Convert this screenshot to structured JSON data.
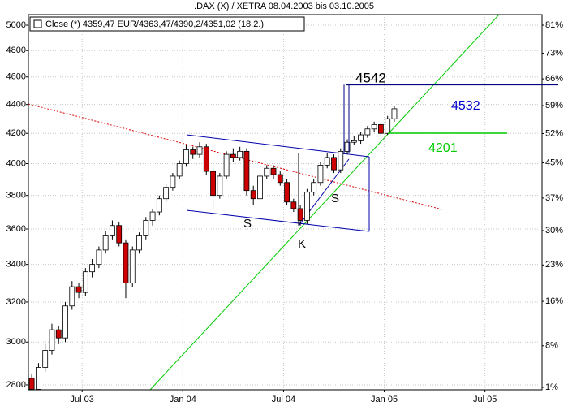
{
  "chart_data": {
    "type": "candlestick",
    "title": ".DAX (X) / XETRA 08.04.2003 bis 03.10.2005",
    "legend_text": "Close (*) 4359,47 EUR/4363,47/4390,2/4351,02 (18.2.)",
    "log_scale": true,
    "grid": true,
    "up_color": "#ffffff",
    "down_color": "#cc0000",
    "xlim": [
      2.8,
      33.4
    ],
    "xticks": [
      {
        "value": 6,
        "label": "Jul 03"
      },
      {
        "value": 12,
        "label": "Jan 04"
      },
      {
        "value": 18,
        "label": "Jul 04"
      },
      {
        "value": 24,
        "label": "Jan 05"
      },
      {
        "value": 30,
        "label": "Jul 05"
      }
    ],
    "ylim": [
      2778,
      5086
    ],
    "yticks": [
      2800,
      3000,
      3200,
      3400,
      3600,
      3800,
      4000,
      4200,
      4400,
      4600,
      4800,
      5000
    ],
    "y2lim": [
      0.6,
      84.1
    ],
    "y2ticks": [
      {
        "value": 1,
        "label": "1%"
      },
      {
        "value": 8,
        "label": "8%"
      },
      {
        "value": 16,
        "label": "16%"
      },
      {
        "value": 23,
        "label": "23%"
      },
      {
        "value": 30,
        "label": "30%"
      },
      {
        "value": 37,
        "label": "37%"
      },
      {
        "value": 45,
        "label": "45%"
      },
      {
        "value": 52,
        "label": "52%"
      },
      {
        "value": 59,
        "label": "59%"
      },
      {
        "value": 66,
        "label": "66%"
      },
      {
        "value": 73,
        "label": "73%"
      },
      {
        "value": 81,
        "label": "81%"
      }
    ],
    "x": [
      3.0,
      3.4,
      3.8,
      4.2,
      4.6,
      5.0,
      5.4,
      5.8,
      6.2,
      6.6,
      7.0,
      7.4,
      7.8,
      8.2,
      8.6,
      9.0,
      9.4,
      9.8,
      10.2,
      10.6,
      11.0,
      11.4,
      11.8,
      12.2,
      12.6,
      13.0,
      13.4,
      13.8,
      14.2,
      14.6,
      15.0,
      15.4,
      15.8,
      16.2,
      16.6,
      17.0,
      17.4,
      17.8,
      18.2,
      18.6,
      19.0,
      19.4,
      19.8,
      20.2,
      20.6,
      21.0,
      21.4,
      21.8,
      22.2,
      22.6,
      23.0,
      23.4,
      23.8,
      24.2,
      24.6
    ],
    "open": [
      2830,
      2780,
      2880,
      2960,
      3060,
      3020,
      3180,
      3280,
      3250,
      3360,
      3400,
      3480,
      3560,
      3620,
      3520,
      3300,
      3480,
      3560,
      3650,
      3700,
      3780,
      3850,
      3920,
      4000,
      4090,
      4060,
      4110,
      3950,
      3800,
      3920,
      4060,
      4040,
      4080,
      3830,
      3780,
      3920,
      3970,
      3930,
      3880,
      3760,
      3720,
      3650,
      3820,
      3880,
      3990,
      4040,
      3960,
      4080,
      4140,
      4150,
      4190,
      4230,
      4260,
      4200,
      4300
    ],
    "high": [
      2850,
      2900,
      2990,
      3090,
      3080,
      3200,
      3310,
      3300,
      3380,
      3430,
      3500,
      3590,
      3650,
      3640,
      3540,
      3500,
      3580,
      3670,
      3720,
      3800,
      3870,
      3940,
      4020,
      4120,
      4110,
      4140,
      4130,
      3970,
      3940,
      4080,
      4100,
      4110,
      4100,
      3860,
      3940,
      3990,
      3990,
      3950,
      3900,
      3780,
      3740,
      3840,
      3900,
      4010,
      4070,
      4060,
      4100,
      4160,
      4180,
      4210,
      4250,
      4280,
      4270,
      4320,
      4390
    ],
    "low": [
      2760,
      2770,
      2860,
      2940,
      2990,
      3000,
      3160,
      3220,
      3230,
      3330,
      3380,
      3460,
      3540,
      3500,
      3220,
      3280,
      3460,
      3540,
      3620,
      3680,
      3760,
      3830,
      3900,
      3980,
      4030,
      4040,
      3930,
      3720,
      3780,
      3900,
      4010,
      4020,
      3800,
      3740,
      3760,
      3900,
      3900,
      3860,
      3740,
      3700,
      3620,
      3630,
      3800,
      3860,
      3970,
      3940,
      3940,
      4060,
      4120,
      4130,
      4170,
      4210,
      4180,
      4190,
      4280
    ],
    "close": [
      2780,
      2880,
      2960,
      3060,
      3020,
      3180,
      3280,
      3250,
      3360,
      3400,
      3480,
      3560,
      3620,
      3520,
      3300,
      3480,
      3560,
      3650,
      3700,
      3780,
      3850,
      3920,
      4000,
      4090,
      4060,
      4110,
      3950,
      3800,
      3920,
      4060,
      4040,
      4080,
      3830,
      3780,
      3920,
      3970,
      3930,
      3880,
      3760,
      3720,
      3650,
      3820,
      3880,
      3990,
      4040,
      3960,
      4080,
      4140,
      4150,
      4190,
      4230,
      4260,
      4200,
      4300,
      4370
    ],
    "reference_lines": [
      {
        "value": 4542,
        "color": "#000080"
      },
      {
        "value": 4201,
        "color": "#00cc00"
      }
    ],
    "annotations": [
      {
        "text": "4532",
        "color": "#0000cc"
      },
      {
        "text": "S",
        "color": "#000000"
      },
      {
        "text": "S",
        "color": "#000000"
      },
      {
        "text": "K",
        "color": "#000000"
      }
    ]
  }
}
